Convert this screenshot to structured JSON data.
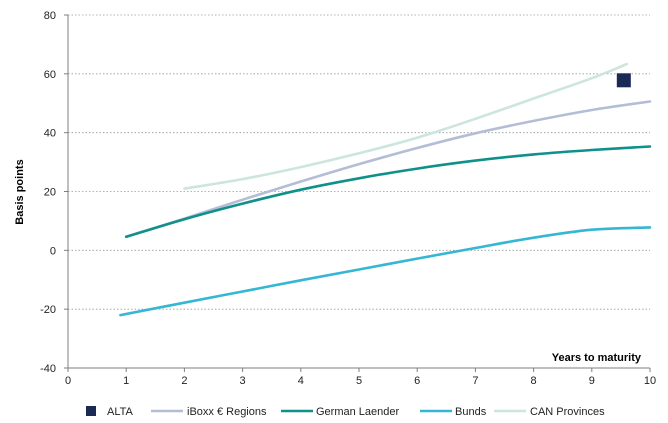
{
  "chart_data": {
    "type": "line",
    "title": "",
    "xlabel": "Years to maturity",
    "ylabel": "Basis points",
    "xlim": [
      0,
      10
    ],
    "ylim": [
      -40,
      80
    ],
    "x_ticks": [
      0,
      1,
      2,
      3,
      4,
      5,
      6,
      7,
      8,
      9,
      10
    ],
    "y_ticks": [
      -40,
      -20,
      0,
      20,
      40,
      60,
      80
    ],
    "grid": "horizontal dotted",
    "legend_position": "bottom",
    "series": [
      {
        "name": "ALTA",
        "type": "scatter",
        "marker": "square",
        "color": "#1b2a55",
        "points": [
          [
            9.55,
            57.8
          ]
        ]
      },
      {
        "name": "iBoxx € Regions",
        "type": "line",
        "color": "#b4bdd6",
        "points": [
          [
            1.0,
            4.6
          ],
          [
            2.0,
            10.8
          ],
          [
            3.0,
            17.2
          ],
          [
            4.0,
            23.4
          ],
          [
            5.0,
            29.3
          ],
          [
            6.0,
            34.8
          ],
          [
            7.0,
            39.8
          ],
          [
            8.0,
            44.0
          ],
          [
            9.0,
            47.7
          ],
          [
            10.0,
            50.6
          ]
        ]
      },
      {
        "name": "German Laender",
        "type": "line",
        "color": "#10908a",
        "points": [
          [
            1.0,
            4.6
          ],
          [
            2.0,
            10.6
          ],
          [
            3.0,
            15.9
          ],
          [
            4.0,
            20.6
          ],
          [
            5.0,
            24.5
          ],
          [
            6.0,
            27.8
          ],
          [
            7.0,
            30.5
          ],
          [
            8.0,
            32.6
          ],
          [
            9.0,
            34.1
          ],
          [
            10.0,
            35.3
          ]
        ]
      },
      {
        "name": "Bunds",
        "type": "line",
        "color": "#35b7d4",
        "points": [
          [
            0.9,
            -22.0
          ],
          [
            2.0,
            -17.8
          ],
          [
            3.0,
            -14.0
          ],
          [
            4.0,
            -10.2
          ],
          [
            5.0,
            -6.5
          ],
          [
            6.0,
            -2.8
          ],
          [
            7.0,
            0.8
          ],
          [
            8.0,
            4.3
          ],
          [
            9.0,
            7.0
          ],
          [
            10.0,
            7.8
          ]
        ]
      },
      {
        "name": "CAN Provinces",
        "type": "line",
        "color": "#cce5dd",
        "points": [
          [
            2.0,
            21.0
          ],
          [
            3.0,
            24.2
          ],
          [
            4.0,
            28.3
          ],
          [
            5.0,
            33.0
          ],
          [
            6.0,
            38.3
          ],
          [
            7.0,
            44.7
          ],
          [
            8.0,
            51.6
          ],
          [
            9.0,
            58.5
          ],
          [
            9.6,
            63.3
          ]
        ]
      }
    ]
  }
}
